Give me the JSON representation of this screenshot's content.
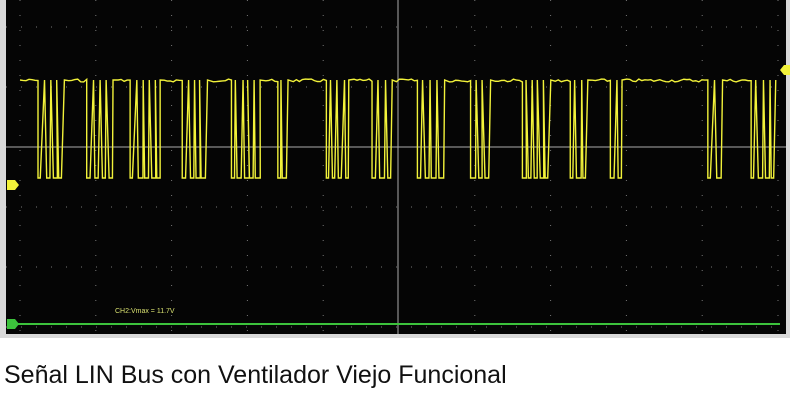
{
  "scope": {
    "measurement": "CH2:Vmax = 11.7V"
  },
  "caption": "Señal LIN Bus con Ventilador Viejo Funcional"
}
